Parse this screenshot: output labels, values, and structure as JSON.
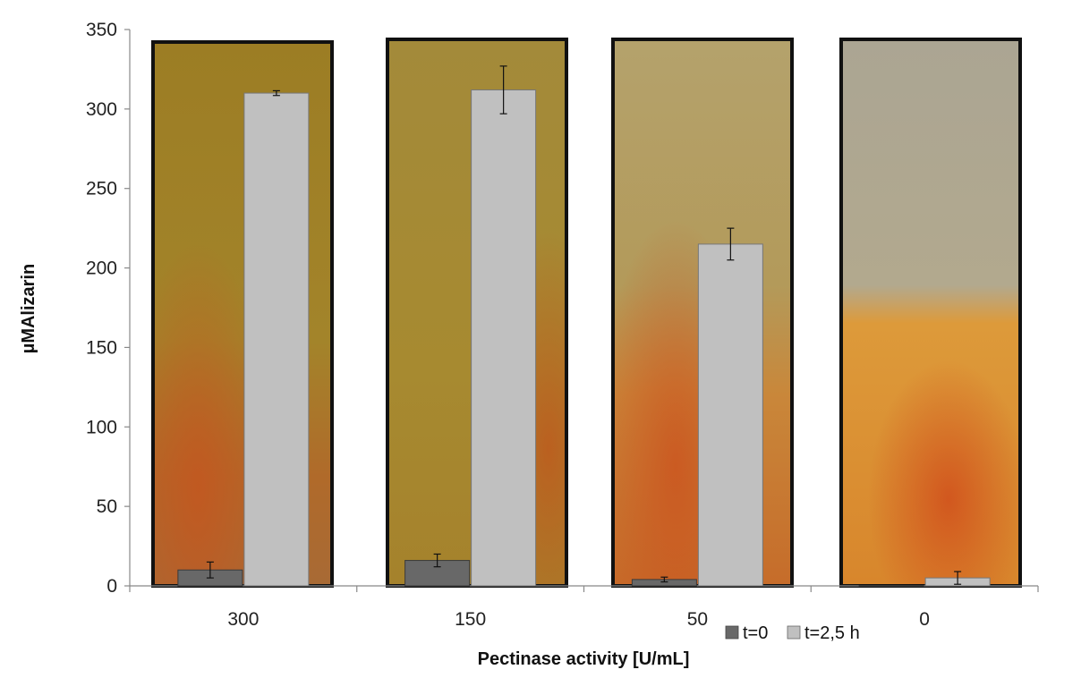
{
  "chart_data": {
    "type": "bar",
    "title": "",
    "xlabel": "Pectinase activity [U/mL]",
    "ylabel": "µMAlizarin",
    "ylim": [
      0,
      350
    ],
    "yticks": [
      0,
      50,
      100,
      150,
      200,
      250,
      300,
      350
    ],
    "categories": [
      "300",
      "150",
      "50",
      "0"
    ],
    "series": [
      {
        "name": "t=0",
        "color": "#686868",
        "values": [
          10,
          16,
          4,
          0
        ],
        "errors": [
          5,
          4,
          1.5,
          0
        ]
      },
      {
        "name": "t=2,5 h",
        "color": "#c0c0c0",
        "values": [
          310,
          312,
          215,
          5
        ],
        "errors": [
          1.5,
          15,
          10,
          4
        ]
      }
    ],
    "legend_position": "bottom-right",
    "grid": false,
    "background_photos": [
      "tube-photo-300",
      "tube-photo-150",
      "tube-photo-50",
      "tube-photo-0"
    ]
  }
}
